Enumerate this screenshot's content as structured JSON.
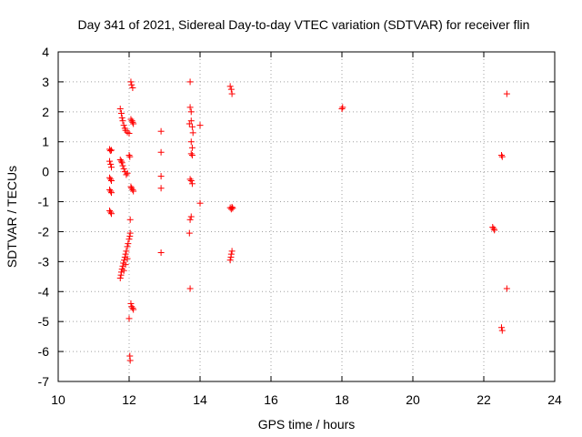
{
  "chart_data": {
    "type": "scatter",
    "title": "Day 341 of 2021, Sidereal Day-to-day VTEC variation (SDTVAR) for receiver flin",
    "xlabel": "GPS time / hours",
    "ylabel": "SDTVAR / TECUs",
    "xlim": [
      10,
      24
    ],
    "ylim": [
      -7,
      4
    ],
    "xticks": [
      10,
      12,
      14,
      16,
      18,
      20,
      22,
      24
    ],
    "yticks": [
      -7,
      -6,
      -5,
      -4,
      -3,
      -2,
      -1,
      0,
      1,
      2,
      3,
      4
    ],
    "grid": true,
    "marker": "+",
    "color": "#ff0000",
    "points": [
      [
        11.45,
        0.75
      ],
      [
        11.47,
        0.7
      ],
      [
        11.5,
        0.72
      ],
      [
        11.45,
        0.35
      ],
      [
        11.48,
        0.25
      ],
      [
        11.5,
        0.15
      ],
      [
        11.45,
        -0.2
      ],
      [
        11.48,
        -0.25
      ],
      [
        11.5,
        -0.3
      ],
      [
        11.45,
        -0.6
      ],
      [
        11.48,
        -0.65
      ],
      [
        11.5,
        -0.7
      ],
      [
        11.45,
        -1.3
      ],
      [
        11.48,
        -1.35
      ],
      [
        11.5,
        -1.4
      ],
      [
        11.75,
        2.1
      ],
      [
        11.78,
        1.95
      ],
      [
        11.8,
        1.8
      ],
      [
        11.82,
        1.7
      ],
      [
        11.85,
        1.55
      ],
      [
        11.88,
        1.45
      ],
      [
        11.9,
        1.38
      ],
      [
        11.95,
        1.32
      ],
      [
        12.0,
        1.28
      ],
      [
        11.75,
        0.4
      ],
      [
        11.78,
        0.35
      ],
      [
        11.8,
        0.3
      ],
      [
        11.82,
        0.2
      ],
      [
        11.85,
        0.1
      ],
      [
        11.88,
        0.0
      ],
      [
        11.92,
        -0.1
      ],
      [
        11.95,
        -0.05
      ],
      [
        11.75,
        -3.55
      ],
      [
        11.77,
        -3.45
      ],
      [
        11.78,
        -3.35
      ],
      [
        11.8,
        -3.25
      ],
      [
        11.82,
        -3.15
      ],
      [
        11.84,
        -3.05
      ],
      [
        11.86,
        -2.95
      ],
      [
        11.88,
        -2.85
      ],
      [
        11.9,
        -2.75
      ],
      [
        11.92,
        -2.65
      ],
      [
        11.95,
        -2.5
      ],
      [
        11.97,
        -2.4
      ],
      [
        12.0,
        -2.25
      ],
      [
        12.02,
        -2.15
      ],
      [
        12.03,
        -2.05
      ],
      [
        11.85,
        -3.3
      ],
      [
        11.9,
        -3.1
      ],
      [
        11.95,
        -2.9
      ],
      [
        12.0,
        0.55
      ],
      [
        12.02,
        0.5
      ],
      [
        12.05,
        -0.5
      ],
      [
        12.07,
        -0.55
      ],
      [
        12.1,
        -0.6
      ],
      [
        12.12,
        -0.65
      ],
      [
        12.05,
        3.0
      ],
      [
        12.07,
        2.9
      ],
      [
        12.1,
        2.8
      ],
      [
        12.05,
        1.75
      ],
      [
        12.08,
        1.7
      ],
      [
        12.1,
        1.65
      ],
      [
        12.12,
        1.6
      ],
      [
        12.03,
        -1.6
      ],
      [
        12.05,
        -4.4
      ],
      [
        12.07,
        -4.5
      ],
      [
        12.1,
        -4.55
      ],
      [
        12.12,
        -4.6
      ],
      [
        12.0,
        -4.9
      ],
      [
        12.02,
        -6.15
      ],
      [
        12.03,
        -6.3
      ],
      [
        12.9,
        1.35
      ],
      [
        12.9,
        0.65
      ],
      [
        12.9,
        -0.15
      ],
      [
        12.9,
        -0.55
      ],
      [
        12.9,
        -2.7
      ],
      [
        13.72,
        3.0
      ],
      [
        13.72,
        2.15
      ],
      [
        13.75,
        2.0
      ],
      [
        13.7,
        1.6
      ],
      [
        13.75,
        1.7
      ],
      [
        13.78,
        1.5
      ],
      [
        13.8,
        1.3
      ],
      [
        13.75,
        1.0
      ],
      [
        13.78,
        0.8
      ],
      [
        13.75,
        0.6
      ],
      [
        13.78,
        0.55
      ],
      [
        13.72,
        -0.25
      ],
      [
        13.75,
        -0.3
      ],
      [
        13.78,
        -0.4
      ],
      [
        13.75,
        -1.5
      ],
      [
        13.72,
        -1.6
      ],
      [
        13.7,
        -2.05
      ],
      [
        13.72,
        -3.9
      ],
      [
        14.0,
        1.55
      ],
      [
        14.0,
        -1.05
      ],
      [
        14.85,
        2.85
      ],
      [
        14.88,
        2.75
      ],
      [
        14.9,
        2.6
      ],
      [
        14.85,
        -1.2
      ],
      [
        14.88,
        -1.25
      ],
      [
        14.9,
        -1.18
      ],
      [
        14.92,
        -1.22
      ],
      [
        14.9,
        -2.65
      ],
      [
        14.88,
        -2.75
      ],
      [
        14.87,
        -2.85
      ],
      [
        14.85,
        -2.95
      ],
      [
        18.0,
        2.1
      ],
      [
        18.02,
        2.15
      ],
      [
        22.25,
        -1.85
      ],
      [
        22.28,
        -1.9
      ],
      [
        22.3,
        -1.95
      ],
      [
        22.5,
        0.55
      ],
      [
        22.52,
        0.5
      ],
      [
        22.5,
        -5.2
      ],
      [
        22.52,
        -5.3
      ],
      [
        22.65,
        2.6
      ],
      [
        22.65,
        -3.9
      ]
    ]
  }
}
